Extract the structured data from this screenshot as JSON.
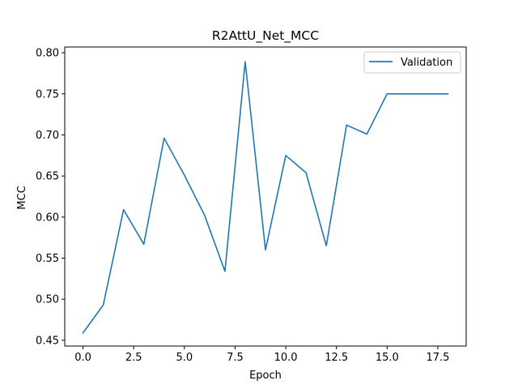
{
  "chart_data": {
    "type": "line",
    "title": "R2AttU_Net_MCC",
    "xlabel": "Epoch",
    "ylabel": "MCC",
    "xlim": [
      -0.9,
      18.9
    ],
    "ylim": [
      0.443,
      0.807
    ],
    "xticks": [
      0.0,
      2.5,
      5.0,
      7.5,
      10.0,
      12.5,
      15.0,
      17.5
    ],
    "xtick_labels": [
      "0.0",
      "2.5",
      "5.0",
      "7.5",
      "10.0",
      "12.5",
      "15.0",
      "17.5"
    ],
    "yticks": [
      0.45,
      0.5,
      0.55,
      0.6,
      0.65,
      0.7,
      0.75,
      0.8
    ],
    "ytick_labels": [
      "0.45",
      "0.50",
      "0.55",
      "0.60",
      "0.65",
      "0.70",
      "0.75",
      "0.80"
    ],
    "grid": false,
    "legend_position": "top-right",
    "series": [
      {
        "name": "Validation",
        "color": "#1f77b4",
        "x": [
          0,
          1,
          2,
          3,
          4,
          5,
          6,
          7,
          8,
          9,
          10,
          11,
          12,
          13,
          14,
          15,
          16,
          17,
          18
        ],
        "y": [
          0.459,
          0.493,
          0.609,
          0.567,
          0.696,
          0.651,
          0.602,
          0.534,
          0.789,
          0.56,
          0.675,
          0.654,
          0.565,
          0.712,
          0.701,
          0.75,
          0.75,
          0.75,
          0.75
        ]
      }
    ]
  }
}
